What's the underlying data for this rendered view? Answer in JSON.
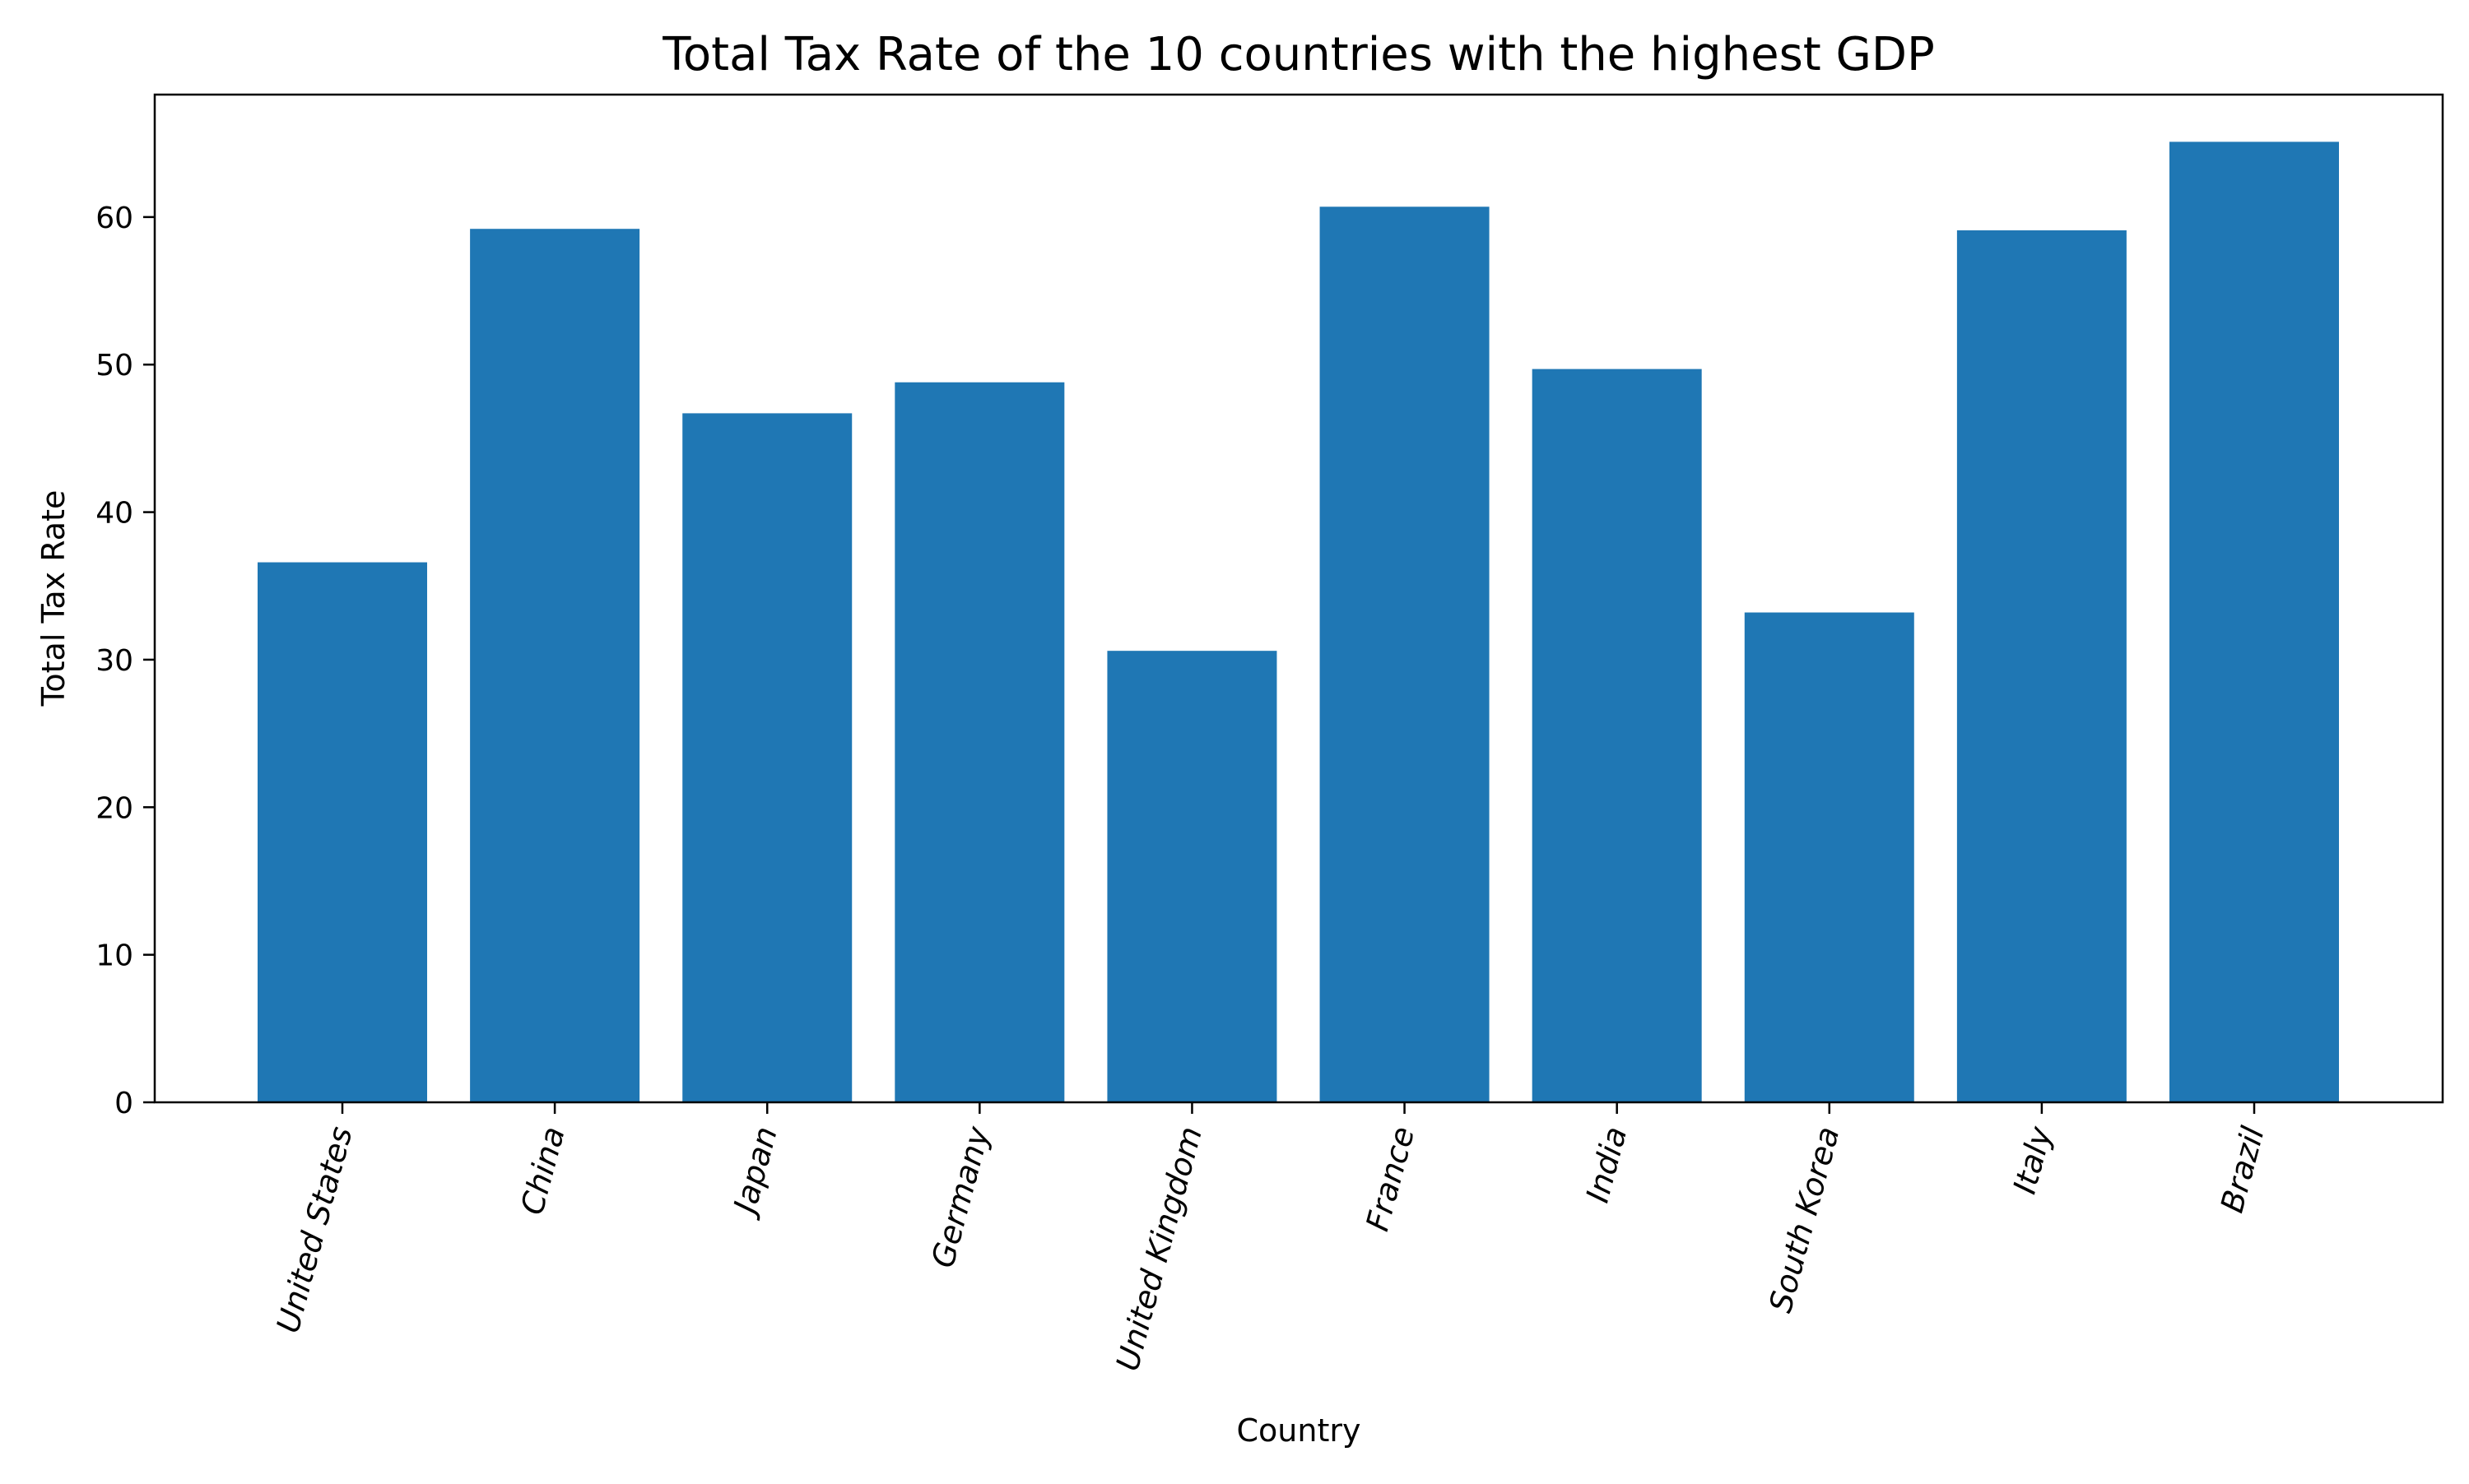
{
  "chart_data": {
    "type": "bar",
    "title": "Total Tax Rate of the 10 countries with the highest GDP",
    "xlabel": "Country",
    "ylabel": "Total Tax Rate",
    "categories": [
      "United States",
      "China",
      "Japan",
      "Germany",
      "United Kingdom",
      "France",
      "India",
      "South Korea",
      "Italy",
      "Brazil"
    ],
    "values": [
      36.6,
      59.2,
      46.7,
      48.8,
      30.6,
      60.7,
      49.7,
      33.2,
      59.1,
      65.1
    ],
    "ylim": [
      0,
      68.3
    ],
    "yticks": [
      0,
      10,
      20,
      30,
      40,
      50,
      60
    ],
    "grid": false,
    "colors": {
      "bar": "#1f77b4",
      "axis": "#000000"
    }
  }
}
